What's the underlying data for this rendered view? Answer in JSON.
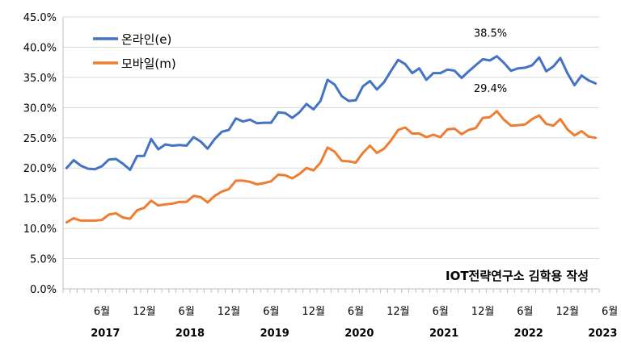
{
  "chart_data": {
    "type": "line",
    "ylim": [
      0,
      45
    ],
    "y_tick_labels": [
      "0.0%",
      "5.0%",
      "10.0%",
      "15.0%",
      "20.0%",
      "25.0%",
      "30.0%",
      "35.0%",
      "40.0%",
      "45.0%"
    ],
    "y_tick_values": [
      0,
      5,
      10,
      15,
      20,
      25,
      30,
      35,
      40,
      45
    ],
    "x_tick_labels": [
      {
        "month": 5,
        "label": "6월"
      },
      {
        "month": 11,
        "label": "12월"
      },
      {
        "month": 17,
        "label": "6월"
      },
      {
        "month": 23,
        "label": "12월"
      },
      {
        "month": 29,
        "label": "6월"
      },
      {
        "month": 35,
        "label": "12월"
      },
      {
        "month": 41,
        "label": "6월"
      },
      {
        "month": 47,
        "label": "12월"
      },
      {
        "month": 53,
        "label": "6월"
      },
      {
        "month": 59,
        "label": "12월"
      },
      {
        "month": 65,
        "label": "6월"
      },
      {
        "month": 71,
        "label": "12월"
      },
      {
        "month": 77,
        "label": "6월"
      }
    ],
    "year_labels": [
      {
        "month": 5.5,
        "label": "2017"
      },
      {
        "month": 17.5,
        "label": "2018"
      },
      {
        "month": 29.5,
        "label": "2019"
      },
      {
        "month": 41.5,
        "label": "2020"
      },
      {
        "month": 53.5,
        "label": "2021"
      },
      {
        "month": 65.5,
        "label": "2022"
      },
      {
        "month": 76,
        "label": "2023"
      }
    ],
    "grid": "horizontal",
    "legend_position": "top-left",
    "series": [
      {
        "name": "온라인(e)",
        "color": "#4472C4",
        "values": [
          20.0,
          21.3,
          20.4,
          19.9,
          19.8,
          20.3,
          21.4,
          21.5,
          20.7,
          19.7,
          22.0,
          22.0,
          24.8,
          23.1,
          23.9,
          23.7,
          23.8,
          23.7,
          25.1,
          24.4,
          23.2,
          24.8,
          26.0,
          26.3,
          28.2,
          27.7,
          28.0,
          27.4,
          27.5,
          27.5,
          29.2,
          29.1,
          28.3,
          29.2,
          30.6,
          29.7,
          31.1,
          34.6,
          33.8,
          31.9,
          31.1,
          31.2,
          33.5,
          34.4,
          33.0,
          34.2,
          36.1,
          37.9,
          37.2,
          35.7,
          36.5,
          34.6,
          35.7,
          35.7,
          36.3,
          36.1,
          34.9,
          36.0,
          37.0,
          38.0,
          37.8,
          38.5,
          37.4,
          36.1,
          36.5,
          36.6,
          37.0,
          38.3,
          36.0,
          36.8,
          38.2,
          35.7,
          33.7,
          35.3,
          34.5,
          34.0
        ]
      },
      {
        "name": "모바일(m)",
        "color": "#ED7D31",
        "values": [
          11.0,
          11.7,
          11.3,
          11.3,
          11.3,
          11.4,
          12.3,
          12.5,
          11.8,
          11.6,
          13.0,
          13.4,
          14.6,
          13.8,
          14.0,
          14.1,
          14.4,
          14.4,
          15.4,
          15.2,
          14.3,
          15.4,
          16.1,
          16.5,
          17.9,
          17.9,
          17.7,
          17.3,
          17.5,
          17.8,
          18.9,
          18.8,
          18.3,
          19.0,
          20.0,
          19.6,
          20.9,
          23.4,
          22.7,
          21.2,
          21.1,
          20.9,
          22.5,
          23.7,
          22.5,
          23.2,
          24.6,
          26.3,
          26.7,
          25.7,
          25.7,
          25.1,
          25.5,
          25.1,
          26.4,
          26.5,
          25.6,
          26.3,
          26.6,
          28.3,
          28.4,
          29.4,
          28.0,
          27.0,
          27.1,
          27.2,
          28.1,
          28.7,
          27.3,
          27.0,
          28.1,
          26.4,
          25.4,
          26.1,
          25.2,
          25.0
        ]
      }
    ],
    "annotations": [
      {
        "text": "38.5%",
        "month": 61,
        "value": 38.5
      },
      {
        "text": "29.4%",
        "month": 61,
        "value": 29.4
      }
    ],
    "watermark": "IOT전략연구소 김학용 작성"
  }
}
